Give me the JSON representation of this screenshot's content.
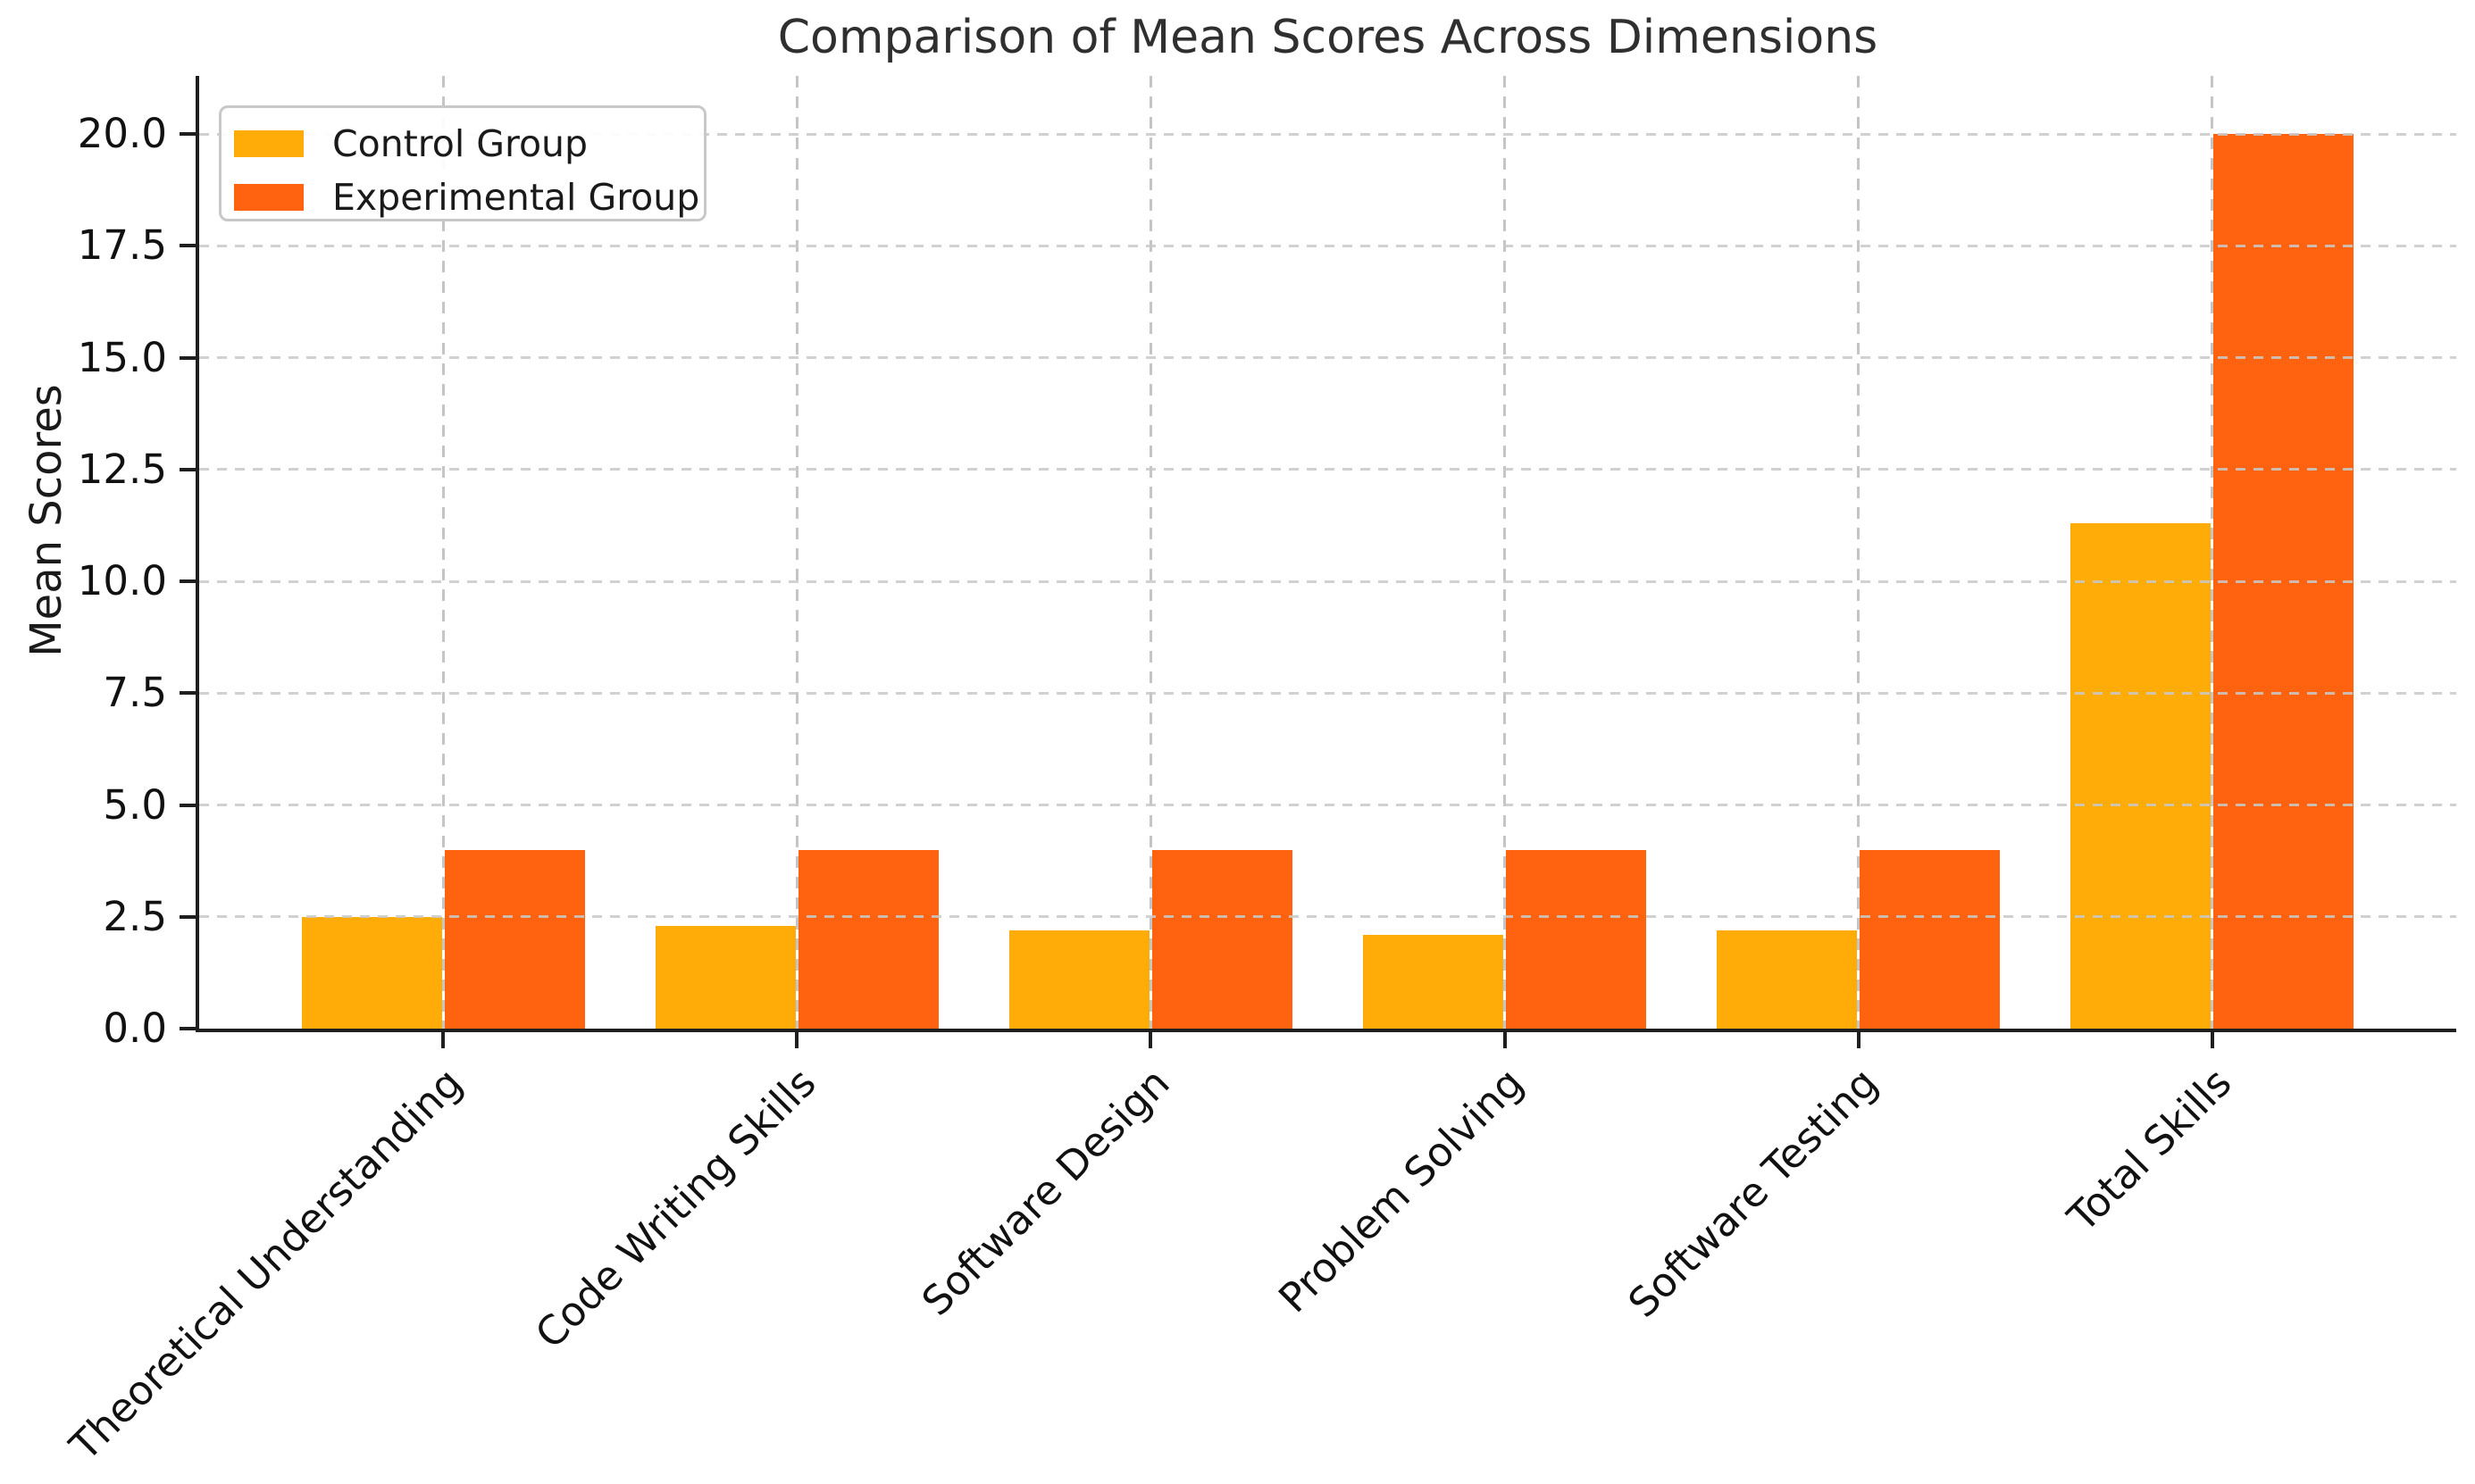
{
  "chart_data": {
    "type": "bar",
    "title": "Comparison of Mean Scores Across Dimensions",
    "xlabel": "",
    "ylabel": "Mean Scores",
    "categories": [
      "Theoretical Understanding",
      "Code Writing Skills",
      "Software Design",
      "Problem Solving",
      "Software Testing",
      "Total Skills"
    ],
    "series": [
      {
        "name": "Control Group",
        "color": "#FFAB08",
        "values": [
          2.5,
          2.3,
          2.2,
          2.1,
          2.2,
          11.3
        ]
      },
      {
        "name": "Experimental Group",
        "color": "#FF6310",
        "values": [
          4.0,
          4.0,
          4.0,
          4.0,
          4.0,
          20.0
        ]
      }
    ],
    "ylim": [
      0,
      21.3
    ],
    "yticks": [
      0,
      2.5,
      5,
      7.5,
      10,
      12.5,
      15,
      17.5,
      20
    ],
    "ytick_labels": [
      "0.0",
      "2.5",
      "5.0",
      "7.5",
      "10.0",
      "12.5",
      "15.0",
      "17.5",
      "20.0"
    ],
    "xtick_rotation_deg": 45,
    "grid": {
      "horizontal": true,
      "vertical": true,
      "style": "dashed",
      "color": "#C9C9C9"
    },
    "legend": {
      "position": "upper-left",
      "items": [
        "Control Group",
        "Experimental Group"
      ]
    }
  },
  "palette": {
    "background": "#FFFFFF",
    "spine": "#1F1F1F",
    "title_text": "#2F2F2F",
    "tick_text": "#111111",
    "grid": "#C9C9C9",
    "legend_border": "#C8C8C8"
  }
}
